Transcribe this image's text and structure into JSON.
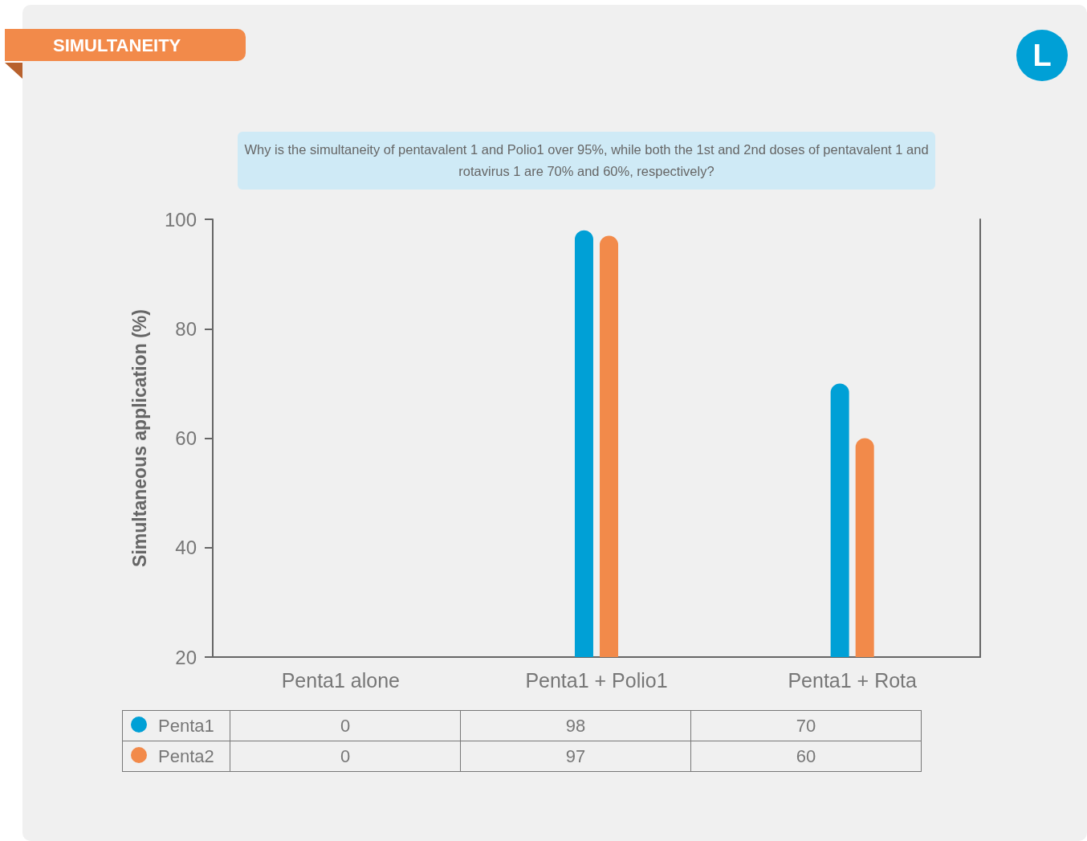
{
  "chart_data": {
    "type": "bar",
    "title": "SIMULTANEITY",
    "ylabel": "Simultaneous application (%)",
    "annotations": [
      "Why is the simultaneity of pentavalent 1 and Polio1 over 95%, while both the 1st and 2nd doses of pentavalent 1 and rotavirus 1 are 70% and 60%, respectively?",
      "L"
    ],
    "categories": [
      "Penta1 alone",
      "Penta1 + Polio1",
      "Penta1 + Rota"
    ],
    "series": [
      {
        "name": "Penta1",
        "color": "#00a0d6",
        "values": [
          null,
          98,
          70
        ],
        "value_labels": [
          "0",
          "98",
          "70"
        ]
      },
      {
        "name": "Penta2",
        "color": "#f28a4a",
        "values": [
          null,
          97,
          60
        ],
        "value_labels": [
          "0",
          "97",
          "60"
        ]
      }
    ],
    "ylim": [
      20,
      100
    ],
    "yticks": [
      20,
      40,
      60,
      80,
      100
    ],
    "grid": false,
    "legend": "bottom"
  }
}
